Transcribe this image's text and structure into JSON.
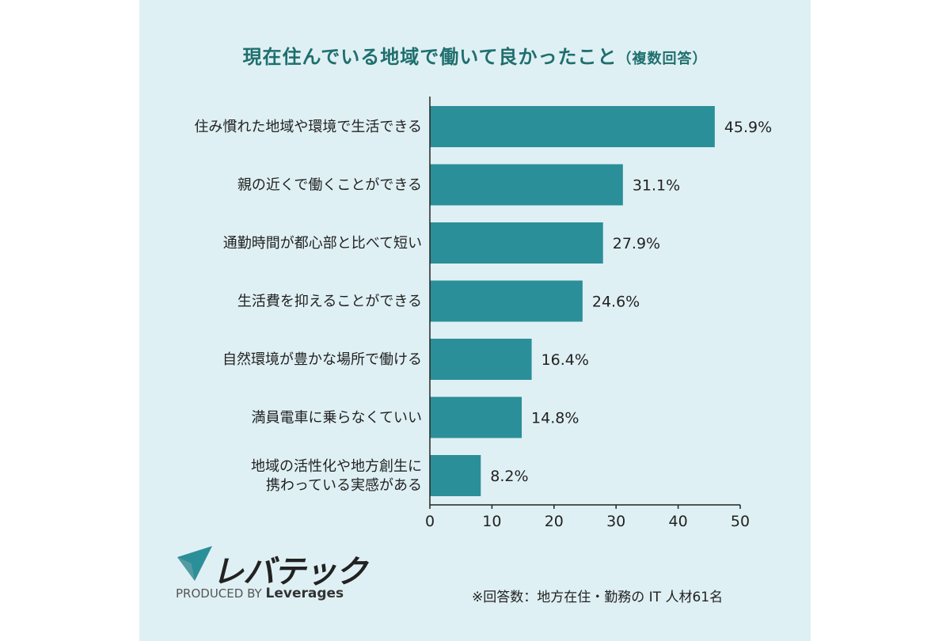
{
  "title_main": "現在住んでいる地域で働いて良かったこと",
  "title_sub": "（複数回答）",
  "chart_data": {
    "type": "bar",
    "orientation": "horizontal",
    "categories": [
      [
        "住み慣れた地域や環境で生活できる"
      ],
      [
        "親の近くで働くことができる"
      ],
      [
        "通勤時間が都心部と比べて短い"
      ],
      [
        "生活費を抑えることができる"
      ],
      [
        "自然環境が豊かな場所で働ける"
      ],
      [
        "満員電車に乗らなくていい"
      ],
      [
        "地域の活性化や地方創生に",
        "携わっている実感がある"
      ]
    ],
    "values": [
      45.9,
      31.1,
      27.9,
      24.6,
      16.4,
      14.8,
      8.2
    ],
    "value_labels": [
      "45.9%",
      "31.1%",
      "27.9%",
      "24.6%",
      "16.4%",
      "14.8%",
      "8.2%"
    ],
    "xlim": [
      0,
      50
    ],
    "xticks": [
      0,
      10,
      20,
      30,
      40,
      50
    ],
    "bar_color": "#2a8f99",
    "grid": false,
    "legend": "none"
  },
  "logo_text": "レバテック",
  "produced_by": "PRODUCED BY",
  "produced_brand": "Leverages",
  "note": "※回答数：地方在住・勤務の IT 人材61名"
}
